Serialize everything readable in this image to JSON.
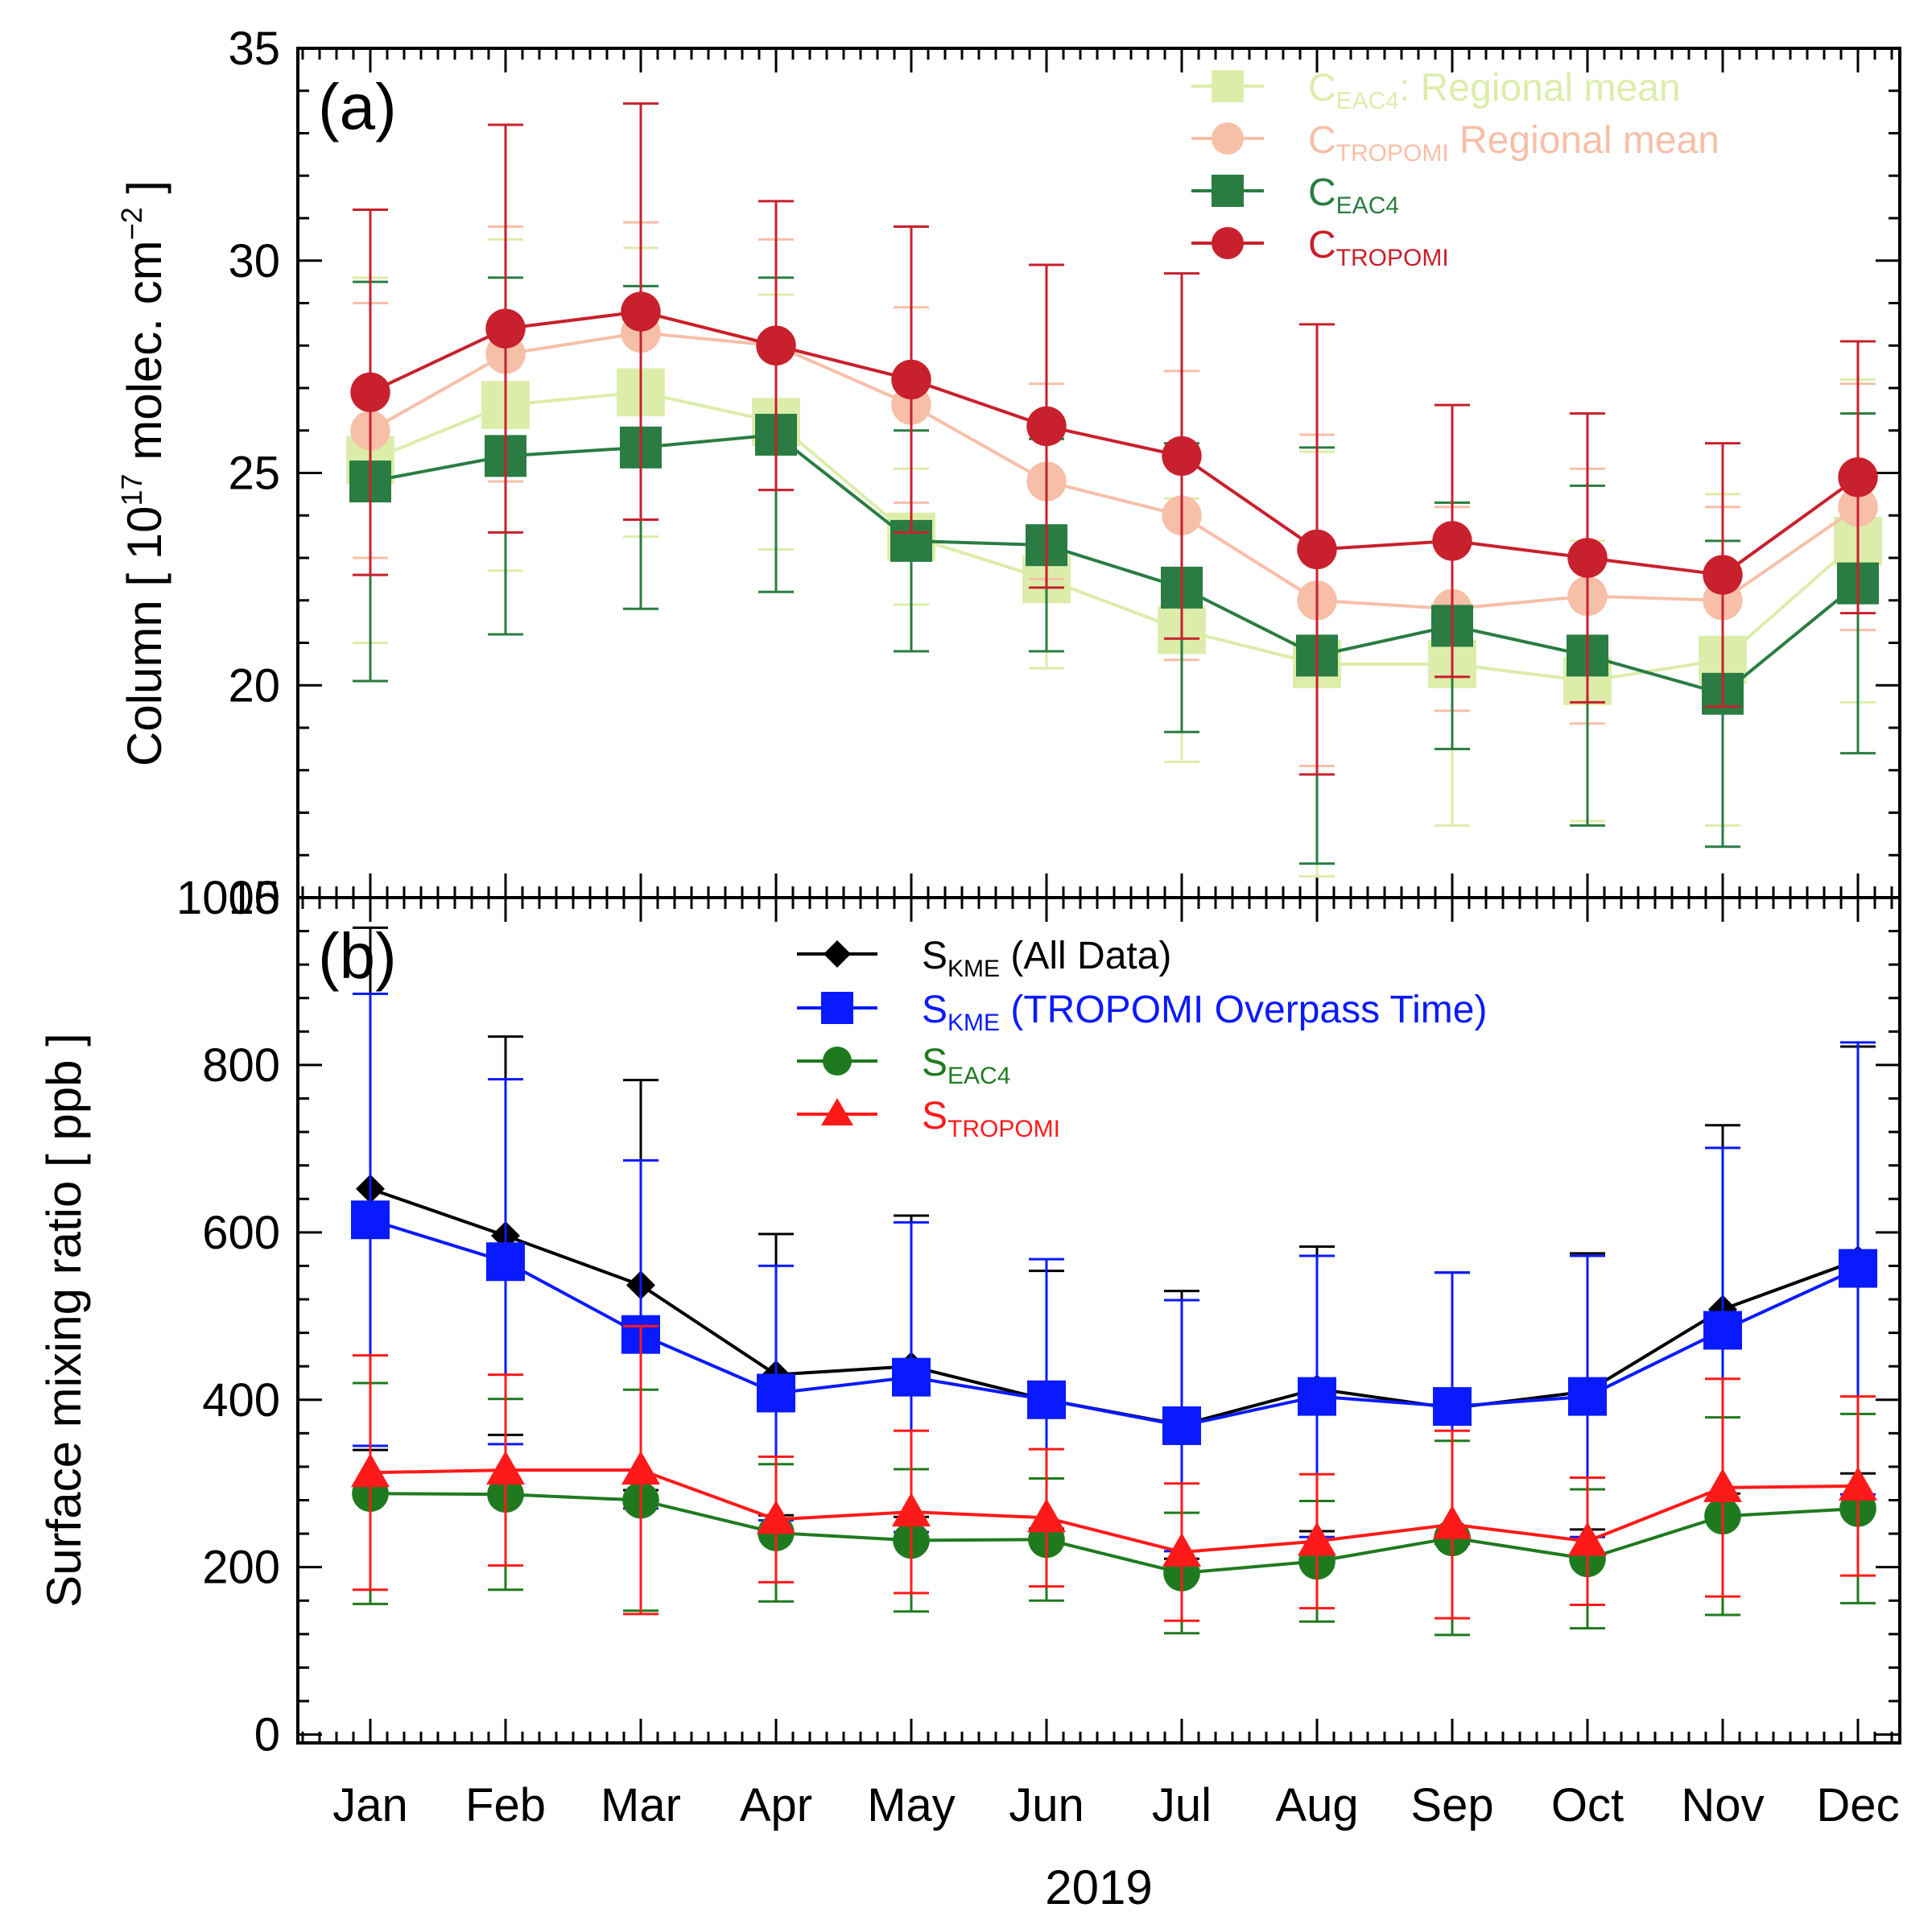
{
  "chart_data": [
    {
      "type": "line",
      "panel_label": "(a)",
      "ylabel": "Column [ 10",
      "ylabel_exponent": "17",
      "ylabel_units": " molec. cm",
      "ylabel_units_exponent": "−2",
      "ylabel_close": " ]",
      "ylim": [
        15,
        35
      ],
      "yticks": [
        "15",
        "20",
        "25",
        "30",
        "35"
      ],
      "categories": [
        "Jan",
        "Feb",
        "Mar",
        "Apr",
        "May",
        "Jun",
        "Jul",
        "Aug",
        "Sep",
        "Oct",
        "Nov",
        "Dec"
      ],
      "legend_position": "top-right",
      "series": [
        {
          "name": "C_EAC4: Regional mean",
          "label_main": "C",
          "label_sub": "EAC4",
          "label_rest": ": Regional mean",
          "color": "#dcedaa",
          "marker": "square",
          "marker_scale": 1.15,
          "values": [
            25.3,
            26.6,
            26.9,
            26.2,
            23.5,
            22.5,
            21.3,
            20.5,
            20.5,
            20.1,
            20.6,
            23.4
          ],
          "errors": [
            4.3,
            3.9,
            3.4,
            3.0,
            1.6,
            2.1,
            3.1,
            5.0,
            3.8,
            3.3,
            3.9,
            3.8
          ]
        },
        {
          "name": "C_TROPOMI Regional mean",
          "label_main": "C",
          "label_sub": "TROPOMI",
          "label_rest": "  Regional mean",
          "color": "#f7bfa8",
          "marker": "circle",
          "marker_scale": 1.0,
          "values": [
            26.0,
            27.8,
            28.3,
            28.0,
            26.6,
            24.8,
            24.0,
            22.0,
            21.8,
            22.1,
            22.0,
            24.2
          ],
          "errors": [
            3.0,
            3.0,
            2.6,
            2.5,
            2.3,
            2.3,
            3.4,
            3.9,
            2.4,
            3.0,
            2.2,
            2.9
          ]
        },
        {
          "name": "C_EAC4",
          "label_main": "C",
          "label_sub": "EAC4",
          "label_rest": "",
          "color": "#2a7c42",
          "marker": "square",
          "marker_scale": 1.0,
          "values": [
            24.8,
            25.4,
            25.6,
            25.9,
            23.4,
            23.3,
            22.3,
            20.7,
            21.4,
            20.7,
            19.8,
            22.4
          ],
          "errors": [
            4.7,
            4.2,
            3.8,
            3.7,
            2.6,
            2.5,
            3.4,
            4.9,
            2.9,
            4.0,
            3.6,
            4.0
          ]
        },
        {
          "name": "C_TROPOMI",
          "label_main": "C",
          "label_sub": "TROPOMI",
          "label_rest": "",
          "color": "#c8202c",
          "marker": "circle",
          "marker_scale": 1.0,
          "values": [
            26.9,
            28.4,
            28.8,
            28.0,
            27.2,
            26.1,
            25.4,
            23.2,
            23.4,
            23.0,
            22.6,
            24.9
          ],
          "errors": [
            4.3,
            4.8,
            4.9,
            3.4,
            3.6,
            3.8,
            4.3,
            5.3,
            3.2,
            3.4,
            3.1,
            3.2
          ]
        }
      ]
    },
    {
      "type": "line",
      "panel_label": "(b)",
      "ylabel": "Surface mixing ratio [ ppb ]",
      "xlabel": "2019",
      "ylim": [
        -10,
        1000
      ],
      "yticks": [
        "0",
        "200",
        "400",
        "600",
        "800",
        "1000"
      ],
      "categories": [
        "Jan",
        "Feb",
        "Mar",
        "Apr",
        "May",
        "Jun",
        "Jul",
        "Aug",
        "Sep",
        "Oct",
        "Nov",
        "Dec"
      ],
      "legend_position": "top-center",
      "series": [
        {
          "name": "S_KME (All Data)",
          "label_main": "S",
          "label_sub": "KME",
          "label_rest": " (All Data)",
          "color": "#000000",
          "marker": "diamond",
          "marker_scale": 0.6,
          "values": [
            652,
            596,
            537,
            430,
            440,
            400,
            370,
            413,
            390,
            410,
            508,
            567
          ],
          "errors": [
            312,
            238,
            245,
            168,
            180,
            154,
            160,
            170,
            162,
            165,
            220,
            255
          ]
        },
        {
          "name": "S_KME (TROPOMI Overpass Time)",
          "label_main": "S",
          "label_sub": "KME",
          "label_rest": " (TROPOMI Overpass Time)",
          "color": "#0a1aff",
          "marker": "square",
          "marker_scale": 1.0,
          "values": [
            615,
            565,
            478,
            408,
            427,
            400,
            369,
            404,
            392,
            404,
            483,
            557
          ],
          "errors": [
            270,
            218,
            208,
            152,
            185,
            168,
            150,
            168,
            160,
            168,
            218,
            270
          ]
        },
        {
          "name": "S_EAC4",
          "label_main": "S",
          "label_sub": "EAC4",
          "label_rest": "",
          "color": "#1f7a1f",
          "marker": "circle",
          "marker_scale": 1.0,
          "values": [
            288,
            287,
            280,
            241,
            232,
            233,
            193,
            207,
            235,
            210,
            261,
            270
          ],
          "errors": [
            132,
            114,
            132,
            82,
            85,
            73,
            72,
            72,
            116,
            83,
            118,
            113
          ]
        },
        {
          "name": "S_TROPOMI",
          "label_main": "S",
          "label_sub": "TROPOMI",
          "label_rest": "",
          "color": "#ff1a1a",
          "marker": "triangle",
          "marker_scale": 1.0,
          "values": [
            313,
            316,
            316,
            257,
            266,
            259,
            218,
            231,
            251,
            231,
            295,
            297
          ],
          "errors": [
            140,
            114,
            172,
            75,
            97,
            82,
            82,
            80,
            112,
            76,
            130,
            107
          ]
        }
      ]
    }
  ]
}
